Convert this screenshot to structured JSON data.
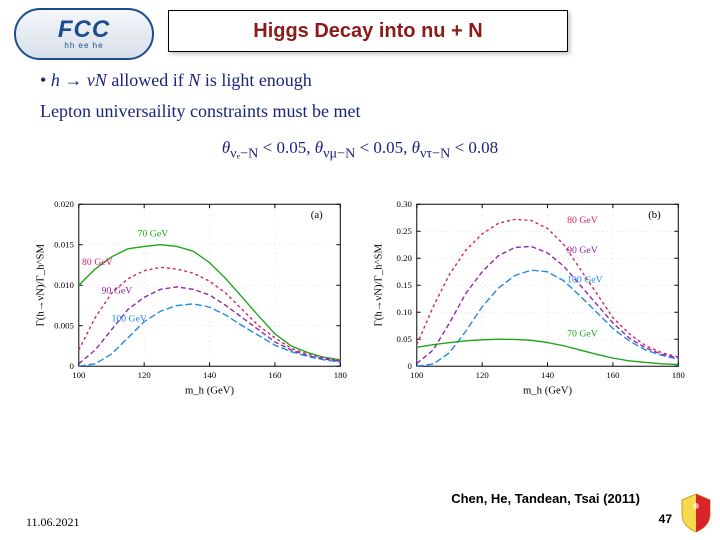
{
  "logo": {
    "main": "FCC",
    "sub": "hh  ee  he"
  },
  "title": "Higgs Decay into nu + N",
  "formula": {
    "line1_prefix": "h → νN",
    "line1_rest": " allowed if ",
    "line1_tail": "N",
    "line1_end": " is light enough",
    "line2": "Lepton universaility constraints must be met",
    "line3_a": "θ",
    "line3_a_sub": "νₑ−N",
    "line3_a_val": " < 0.05,   ",
    "line3_b": "θ",
    "line3_b_sub": "νμ−N",
    "line3_b_val": " < 0.05,   ",
    "line3_c": "θ",
    "line3_c_sub": "ντ−N",
    "line3_c_val": " < 0.08"
  },
  "chart_a": {
    "panel": "(a)",
    "xlabel": "m_h  (GeV)",
    "ylabel": "Γ(h→νN)/Γ_h^SM",
    "xlim": [
      100,
      180
    ],
    "xticks": [
      100,
      120,
      140,
      160,
      180
    ],
    "ylim": [
      0,
      0.02
    ],
    "yticks": [
      0,
      0.005,
      0.01,
      0.015,
      0.02
    ],
    "yticklabels": [
      "0",
      "0.005",
      "0.010",
      "0.015",
      "0.020"
    ],
    "curves": [
      {
        "label": "70 GeV",
        "color": "#1aa61a",
        "dash": "",
        "lbl_x": 118,
        "lbl_y": 0.016,
        "x": [
          100,
          105,
          110,
          115,
          120,
          125,
          130,
          135,
          140,
          145,
          150,
          155,
          160,
          165,
          170,
          175,
          180
        ],
        "y": [
          0.01,
          0.012,
          0.0135,
          0.0145,
          0.0148,
          0.015,
          0.0148,
          0.0142,
          0.0128,
          0.0108,
          0.0085,
          0.0062,
          0.004,
          0.0025,
          0.0017,
          0.0011,
          0.0008
        ]
      },
      {
        "label": "80 GeV",
        "color": "#d81b60",
        "dash": "3 3",
        "lbl_x": 101,
        "lbl_y": 0.0125,
        "x": [
          100,
          105,
          110,
          115,
          120,
          125,
          130,
          135,
          140,
          145,
          150,
          155,
          160,
          165,
          170,
          175,
          180
        ],
        "y": [
          0.002,
          0.006,
          0.009,
          0.0108,
          0.0118,
          0.0122,
          0.012,
          0.0115,
          0.0105,
          0.009,
          0.007,
          0.005,
          0.0035,
          0.0022,
          0.0015,
          0.001,
          0.0007
        ]
      },
      {
        "label": "90 GeV",
        "color": "#8e24aa",
        "dash": "5 3",
        "lbl_x": 107,
        "lbl_y": 0.009,
        "x": [
          100,
          105,
          110,
          115,
          120,
          125,
          130,
          135,
          140,
          145,
          150,
          155,
          160,
          165,
          170,
          175,
          180
        ],
        "y": [
          0.0003,
          0.002,
          0.0045,
          0.007,
          0.0085,
          0.0095,
          0.0098,
          0.0095,
          0.0088,
          0.0075,
          0.006,
          0.0045,
          0.003,
          0.002,
          0.0013,
          0.0009,
          0.0006
        ]
      },
      {
        "label": "100 GeV",
        "color": "#1e88e5",
        "dash": "7 3",
        "lbl_x": 110,
        "lbl_y": 0.0055,
        "x": [
          100,
          105,
          110,
          115,
          120,
          125,
          130,
          135,
          140,
          145,
          150,
          155,
          160,
          165,
          170,
          175,
          180
        ],
        "y": [
          0,
          0.0003,
          0.0015,
          0.0035,
          0.0055,
          0.0068,
          0.0075,
          0.0077,
          0.0073,
          0.0063,
          0.005,
          0.0038,
          0.0026,
          0.0018,
          0.0012,
          0.0008,
          0.0005
        ]
      }
    ]
  },
  "chart_b": {
    "panel": "(b)",
    "xlabel": "m_h  (GeV)",
    "ylabel": "Γ(h→νN)/Γ_h^SM",
    "xlim": [
      100,
      180
    ],
    "xticks": [
      100,
      120,
      140,
      160,
      180
    ],
    "ylim": [
      0,
      0.3
    ],
    "yticks": [
      0,
      0.05,
      0.1,
      0.15,
      0.2,
      0.25,
      0.3
    ],
    "yticklabels": [
      "0",
      "0.05",
      "0.10",
      "0.15",
      "0.20",
      "0.25",
      "0.30"
    ],
    "curves": [
      {
        "label": "80 GeV",
        "color": "#d81b60",
        "dash": "3 3",
        "lbl_x": 146,
        "lbl_y": 0.265,
        "x": [
          100,
          105,
          110,
          115,
          120,
          125,
          130,
          135,
          140,
          145,
          150,
          155,
          160,
          165,
          170,
          175,
          180
        ],
        "y": [
          0.04,
          0.11,
          0.17,
          0.215,
          0.245,
          0.265,
          0.272,
          0.27,
          0.255,
          0.225,
          0.18,
          0.135,
          0.09,
          0.06,
          0.038,
          0.025,
          0.017
        ]
      },
      {
        "label": "90 GeV",
        "color": "#8e24aa",
        "dash": "5 3",
        "lbl_x": 146,
        "lbl_y": 0.21,
        "x": [
          100,
          105,
          110,
          115,
          120,
          125,
          130,
          135,
          140,
          145,
          150,
          155,
          160,
          165,
          170,
          175,
          180
        ],
        "y": [
          0.005,
          0.03,
          0.08,
          0.135,
          0.175,
          0.205,
          0.22,
          0.222,
          0.21,
          0.185,
          0.15,
          0.115,
          0.08,
          0.052,
          0.034,
          0.022,
          0.015
        ]
      },
      {
        "label": "100 GeV",
        "color": "#1e88e5",
        "dash": "7 3",
        "lbl_x": 146,
        "lbl_y": 0.155,
        "x": [
          100,
          105,
          110,
          115,
          120,
          125,
          130,
          135,
          140,
          145,
          150,
          155,
          160,
          165,
          170,
          175,
          180
        ],
        "y": [
          0,
          0.004,
          0.025,
          0.065,
          0.11,
          0.145,
          0.168,
          0.178,
          0.175,
          0.158,
          0.13,
          0.1,
          0.07,
          0.047,
          0.03,
          0.02,
          0.013
        ]
      },
      {
        "label": "70 GeV",
        "color": "#1aa61a",
        "dash": "",
        "lbl_x": 146,
        "lbl_y": 0.055,
        "x": [
          100,
          105,
          110,
          115,
          120,
          125,
          130,
          135,
          140,
          145,
          150,
          155,
          160,
          165,
          170,
          175,
          180
        ],
        "y": [
          0.035,
          0.04,
          0.044,
          0.047,
          0.049,
          0.05,
          0.0495,
          0.048,
          0.044,
          0.038,
          0.03,
          0.022,
          0.015,
          0.01,
          0.007,
          0.0045,
          0.003
        ]
      }
    ]
  },
  "citation": "Chen, He, Tandean, Tsai (2011)",
  "date": "11.06.2021",
  "pagenum": "47"
}
